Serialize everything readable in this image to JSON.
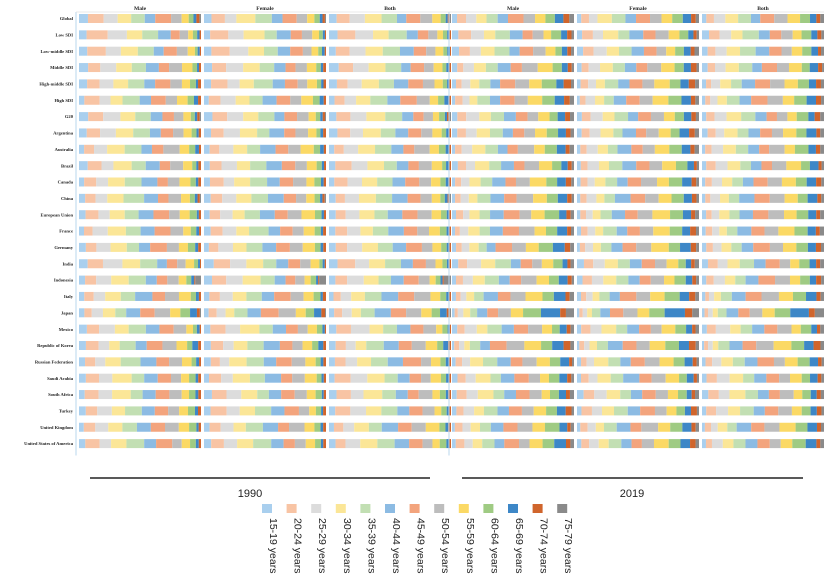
{
  "chart_data": {
    "type": "bar",
    "orientation": "horizontal-stacked-proportion",
    "value_unit": "percent",
    "age_groups": [
      "15-19 years",
      "20-24 years",
      "25-29 years",
      "30-34 years",
      "35-39 years",
      "40-44 years",
      "45-49 years",
      "50-54 years",
      "55-59 years",
      "60-64 years",
      "65-69 years",
      "70-74 years",
      "75-79 years"
    ],
    "colors": [
      "#a9cfee",
      "#f8c4a4",
      "#dcdcdc",
      "#fbe697",
      "#c2dfb3",
      "#8cbbe3",
      "#f3a47d",
      "#bdbdbd",
      "#fbd965",
      "#9fcb83",
      "#3d87c7",
      "#d0652c",
      "#8a8a8a"
    ],
    "years": [
      "1990",
      "2019"
    ],
    "sexes": [
      "Male",
      "Female",
      "Both"
    ],
    "locations": [
      "Global",
      "Low SDI",
      "Low-middle SDI",
      "Middle SDI",
      "High-middle SDI",
      "High SDI",
      "G20",
      "Argentina",
      "Australia",
      "Brazil",
      "Canada",
      "China",
      "European Union",
      "France",
      "Germany",
      "India",
      "Indonesia",
      "Italy",
      "Japan",
      "Mexico",
      "Republic of Korea",
      "Russian Federation",
      "Saudi Arabia",
      "South Africa",
      "Turkey",
      "United Kingdom",
      "United States of America"
    ],
    "grid": false,
    "legend_position": "bottom",
    "profiles_1990": {
      "Global": [
        7,
        12,
        12,
        13,
        12,
        10,
        10,
        9,
        6,
        4,
        2,
        2,
        1
      ],
      "Low SDI": [
        6,
        15,
        15,
        15,
        12,
        10,
        9,
        7,
        5,
        3,
        2,
        1,
        0
      ],
      "Low-middle SDI": [
        6,
        14,
        14,
        14,
        12,
        10,
        10,
        8,
        6,
        3,
        2,
        1,
        0
      ],
      "Middle SDI": [
        7,
        12,
        12,
        13,
        12,
        10,
        10,
        9,
        7,
        4,
        2,
        2,
        0
      ],
      "High-middle SDI": [
        6,
        11,
        11,
        13,
        13,
        11,
        11,
        9,
        7,
        4,
        2,
        2,
        0
      ],
      "High SDI": [
        5,
        10,
        11,
        12,
        12,
        11,
        11,
        10,
        8,
        5,
        3,
        2,
        0
      ],
      "G20": [
        7,
        12,
        12,
        13,
        12,
        10,
        10,
        9,
        6,
        4,
        2,
        2,
        1
      ],
      "Argentina": [
        6,
        11,
        12,
        12,
        12,
        11,
        11,
        10,
        7,
        4,
        2,
        2,
        0
      ],
      "Australia": [
        5,
        9,
        10,
        12,
        12,
        11,
        11,
        11,
        9,
        5,
        3,
        2,
        0
      ],
      "Brazil": [
        6,
        12,
        12,
        13,
        12,
        11,
        10,
        9,
        7,
        4,
        2,
        2,
        0
      ],
      "Canada": [
        5,
        10,
        10,
        12,
        13,
        12,
        11,
        10,
        8,
        5,
        2,
        2,
        0
      ],
      "China": [
        6,
        9,
        10,
        15,
        14,
        11,
        10,
        9,
        7,
        4,
        2,
        2,
        1
      ],
      "European Union": [
        5,
        9,
        11,
        12,
        12,
        11,
        11,
        11,
        9,
        5,
        2,
        2,
        0
      ],
      "France": [
        5,
        9,
        11,
        13,
        13,
        11,
        11,
        10,
        8,
        5,
        2,
        2,
        0
      ],
      "Germany": [
        5,
        9,
        11,
        12,
        12,
        11,
        11,
        11,
        9,
        5,
        2,
        2,
        0
      ],
      "India": [
        7,
        14,
        14,
        14,
        12,
        10,
        9,
        8,
        6,
        3,
        2,
        1,
        0
      ],
      "Indonesia": [
        6,
        11,
        12,
        13,
        12,
        10,
        10,
        8,
        6,
        4,
        2,
        1,
        5
      ],
      "Italy": [
        4,
        8,
        10,
        12,
        12,
        12,
        12,
        12,
        9,
        5,
        2,
        2,
        0
      ],
      "Japan": [
        4,
        7,
        8,
        9,
        11,
        11,
        12,
        12,
        10,
        7,
        5,
        3,
        1
      ],
      "Mexico": [
        6,
        13,
        13,
        13,
        12,
        11,
        10,
        9,
        6,
        4,
        2,
        1,
        0
      ],
      "Republic of Korea": [
        6,
        10,
        10,
        11,
        12,
        11,
        11,
        10,
        8,
        5,
        4,
        2,
        0
      ],
      "Russian Federation": [
        5,
        8,
        10,
        12,
        14,
        13,
        12,
        10,
        8,
        4,
        2,
        2,
        0
      ],
      "Saudi Arabia": [
        5,
        11,
        12,
        13,
        12,
        11,
        10,
        9,
        8,
        5,
        2,
        2,
        0
      ],
      "South Africa": [
        6,
        11,
        12,
        13,
        12,
        11,
        10,
        9,
        7,
        5,
        2,
        2,
        0
      ],
      "Turkey": [
        6,
        11,
        12,
        13,
        12,
        11,
        10,
        9,
        7,
        5,
        2,
        2,
        0
      ],
      "United Kingdom": [
        5,
        9,
        11,
        12,
        12,
        11,
        11,
        11,
        9,
        5,
        2,
        2,
        0
      ],
      "United States of America": [
        5,
        10,
        11,
        13,
        13,
        11,
        11,
        10,
        7,
        5,
        2,
        2,
        0
      ]
    },
    "profiles_2019": {
      "Global": [
        4,
        7,
        9,
        10,
        10,
        10,
        10,
        10,
        9,
        8,
        6,
        4,
        3
      ],
      "Low SDI": [
        5,
        9,
        10,
        11,
        11,
        10,
        10,
        9,
        8,
        7,
        5,
        3,
        2
      ],
      "Low-middle SDI": [
        5,
        8,
        10,
        11,
        11,
        10,
        10,
        9,
        8,
        7,
        5,
        3,
        3
      ],
      "Middle SDI": [
        4,
        6,
        8,
        10,
        10,
        10,
        11,
        11,
        10,
        8,
        6,
        4,
        2
      ],
      "High-middle SDI": [
        3,
        5,
        7,
        8,
        9,
        10,
        11,
        11,
        11,
        10,
        7,
        5,
        3
      ],
      "High SDI": [
        3,
        5,
        7,
        8,
        9,
        10,
        11,
        12,
        11,
        10,
        7,
        4,
        3
      ],
      "G20": [
        4,
        7,
        9,
        10,
        10,
        10,
        10,
        10,
        9,
        8,
        6,
        4,
        3
      ],
      "Argentina": [
        4,
        7,
        8,
        9,
        9,
        10,
        10,
        10,
        10,
        9,
        7,
        4,
        3
      ],
      "Australia": [
        3,
        6,
        8,
        9,
        9,
        10,
        10,
        11,
        10,
        10,
        7,
        4,
        3
      ],
      "Brazil": [
        4,
        7,
        9,
        10,
        10,
        10,
        10,
        10,
        10,
        9,
        6,
        3,
        2
      ],
      "Canada": [
        3,
        5,
        7,
        8,
        9,
        10,
        11,
        12,
        12,
        10,
        7,
        4,
        2
      ],
      "China": [
        3,
        5,
        7,
        8,
        9,
        11,
        12,
        12,
        11,
        9,
        7,
        4,
        2
      ],
      "European Union": [
        3,
        5,
        6,
        8,
        9,
        10,
        11,
        12,
        12,
        10,
        7,
        4,
        3
      ],
      "France": [
        3,
        5,
        6,
        8,
        9,
        10,
        11,
        12,
        12,
        10,
        7,
        4,
        3
      ],
      "Germany": [
        3,
        5,
        6,
        7,
        8,
        9,
        11,
        13,
        13,
        10,
        8,
        4,
        3
      ],
      "India": [
        5,
        8,
        10,
        11,
        11,
        10,
        10,
        9,
        8,
        7,
        5,
        3,
        3
      ],
      "Indonesia": [
        4,
        7,
        8,
        9,
        10,
        10,
        11,
        11,
        10,
        8,
        6,
        4,
        2
      ],
      "Italy": [
        3,
        4,
        5,
        6,
        8,
        10,
        12,
        13,
        13,
        11,
        8,
        4,
        3
      ],
      "Japan": [
        2,
        3,
        4,
        5,
        7,
        8,
        9,
        10,
        12,
        13,
        14,
        6,
        7
      ],
      "Mexico": [
        4,
        8,
        10,
        10,
        10,
        10,
        10,
        10,
        9,
        8,
        5,
        3,
        3
      ],
      "Republic of Korea": [
        2,
        4,
        5,
        6,
        8,
        10,
        12,
        13,
        13,
        11,
        8,
        5,
        3
      ],
      "Russian Federation": [
        3,
        5,
        8,
        10,
        10,
        11,
        11,
        11,
        11,
        9,
        6,
        3,
        2
      ],
      "Saudi Arabia": [
        4,
        7,
        9,
        10,
        10,
        11,
        11,
        10,
        9,
        8,
        6,
        3,
        2
      ],
      "South Africa": [
        5,
        8,
        10,
        11,
        11,
        10,
        10,
        9,
        8,
        7,
        5,
        3,
        3
      ],
      "Turkey": [
        4,
        7,
        9,
        10,
        10,
        10,
        10,
        10,
        10,
        8,
        6,
        4,
        2
      ],
      "United Kingdom": [
        3,
        6,
        7,
        8,
        9,
        10,
        11,
        12,
        11,
        10,
        7,
        3,
        3
      ],
      "United States of America": [
        3,
        6,
        8,
        8,
        9,
        9,
        10,
        11,
        11,
        10,
        8,
        4,
        3
      ]
    }
  }
}
